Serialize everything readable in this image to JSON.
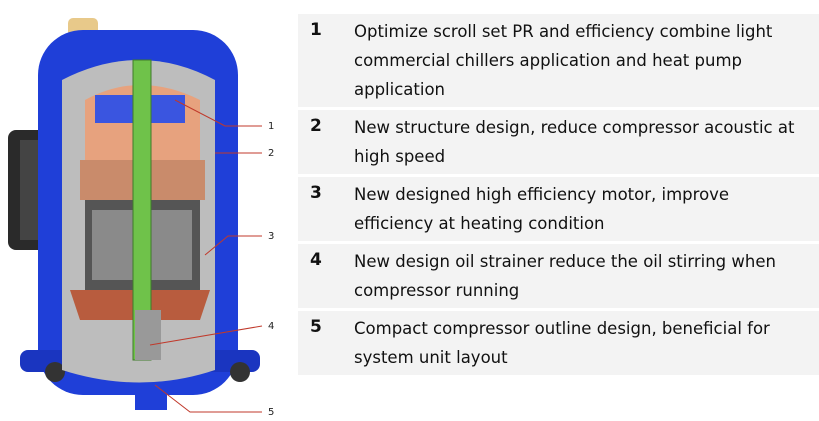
{
  "callouts": [
    {
      "label": "1"
    },
    {
      "label": "2"
    },
    {
      "label": "3"
    },
    {
      "label": "4"
    },
    {
      "label": "5"
    }
  ],
  "features": [
    {
      "number": "1",
      "text": "Optimize scroll set PR and efficiency combine light commercial chillers application and heat pump application"
    },
    {
      "number": "2",
      "text": "New structure design, reduce compressor acoustic at high speed"
    },
    {
      "number": "3",
      "text": "New designed high efficiency motor, improve efficiency at heating condition"
    },
    {
      "number": "4",
      "text": "New design oil strainer reduce the oil stirring when compressor running"
    },
    {
      "number": "5",
      "text": "Compact compressor outline design, beneficial for system unit layout"
    }
  ]
}
